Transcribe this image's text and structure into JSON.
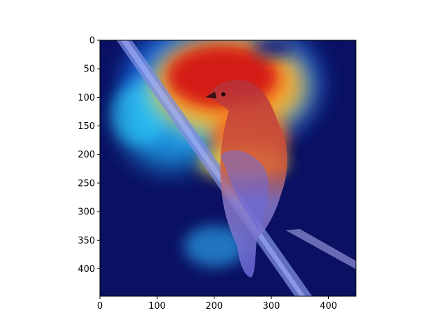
{
  "figure": {
    "type": "image-with-heatmap-overlay",
    "subject": "bird",
    "colormap": "jet"
  },
  "axes": {
    "x_ticks": [
      "0",
      "100",
      "200",
      "300",
      "400"
    ],
    "y_ticks": [
      "0",
      "50",
      "100",
      "150",
      "200",
      "250",
      "300",
      "350",
      "400"
    ],
    "x_range": [
      0,
      448
    ],
    "y_range": [
      0,
      448
    ]
  },
  "colors": {
    "background": "#ffffff",
    "axis": "#000000",
    "heat_low": "#0a0f63",
    "heat_high": "#cc0000"
  }
}
